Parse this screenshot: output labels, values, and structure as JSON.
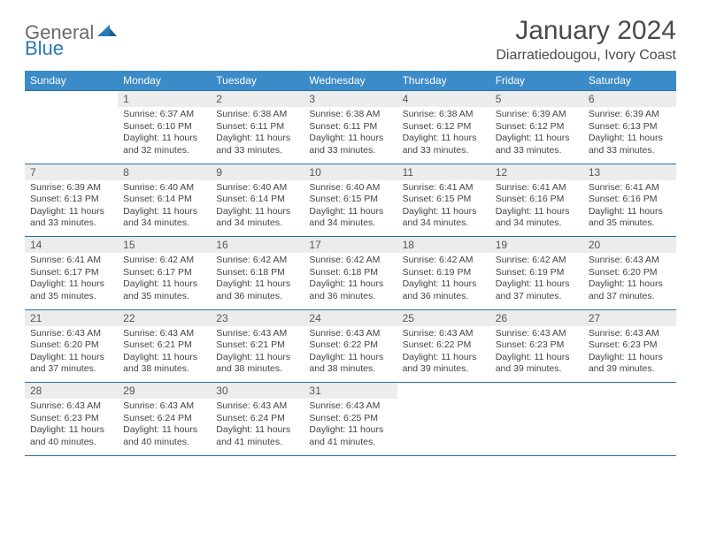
{
  "logo": {
    "text1": "General",
    "text2": "Blue"
  },
  "title": "January 2024",
  "location": "Diarratiedougou, Ivory Coast",
  "colors": {
    "header_bg": "#3b8bc8",
    "header_text": "#ffffff",
    "daynum_bg": "#ececec",
    "border": "#2a6fa3",
    "logo_gray": "#6b6b6b",
    "logo_blue": "#2a7ab8",
    "text": "#444444"
  },
  "weekdays": [
    "Sunday",
    "Monday",
    "Tuesday",
    "Wednesday",
    "Thursday",
    "Friday",
    "Saturday"
  ],
  "weeks": [
    {
      "nums": [
        "",
        "1",
        "2",
        "3",
        "4",
        "5",
        "6"
      ],
      "cells": [
        {
          "empty": true
        },
        {
          "sunrise": "6:37 AM",
          "sunset": "6:10 PM",
          "daylight": "11 hours and 32 minutes."
        },
        {
          "sunrise": "6:38 AM",
          "sunset": "6:11 PM",
          "daylight": "11 hours and 33 minutes."
        },
        {
          "sunrise": "6:38 AM",
          "sunset": "6:11 PM",
          "daylight": "11 hours and 33 minutes."
        },
        {
          "sunrise": "6:38 AM",
          "sunset": "6:12 PM",
          "daylight": "11 hours and 33 minutes."
        },
        {
          "sunrise": "6:39 AM",
          "sunset": "6:12 PM",
          "daylight": "11 hours and 33 minutes."
        },
        {
          "sunrise": "6:39 AM",
          "sunset": "6:13 PM",
          "daylight": "11 hours and 33 minutes."
        }
      ]
    },
    {
      "nums": [
        "7",
        "8",
        "9",
        "10",
        "11",
        "12",
        "13"
      ],
      "cells": [
        {
          "sunrise": "6:39 AM",
          "sunset": "6:13 PM",
          "daylight": "11 hours and 33 minutes."
        },
        {
          "sunrise": "6:40 AM",
          "sunset": "6:14 PM",
          "daylight": "11 hours and 34 minutes."
        },
        {
          "sunrise": "6:40 AM",
          "sunset": "6:14 PM",
          "daylight": "11 hours and 34 minutes."
        },
        {
          "sunrise": "6:40 AM",
          "sunset": "6:15 PM",
          "daylight": "11 hours and 34 minutes."
        },
        {
          "sunrise": "6:41 AM",
          "sunset": "6:15 PM",
          "daylight": "11 hours and 34 minutes."
        },
        {
          "sunrise": "6:41 AM",
          "sunset": "6:16 PM",
          "daylight": "11 hours and 34 minutes."
        },
        {
          "sunrise": "6:41 AM",
          "sunset": "6:16 PM",
          "daylight": "11 hours and 35 minutes."
        }
      ]
    },
    {
      "nums": [
        "14",
        "15",
        "16",
        "17",
        "18",
        "19",
        "20"
      ],
      "cells": [
        {
          "sunrise": "6:41 AM",
          "sunset": "6:17 PM",
          "daylight": "11 hours and 35 minutes."
        },
        {
          "sunrise": "6:42 AM",
          "sunset": "6:17 PM",
          "daylight": "11 hours and 35 minutes."
        },
        {
          "sunrise": "6:42 AM",
          "sunset": "6:18 PM",
          "daylight": "11 hours and 36 minutes."
        },
        {
          "sunrise": "6:42 AM",
          "sunset": "6:18 PM",
          "daylight": "11 hours and 36 minutes."
        },
        {
          "sunrise": "6:42 AM",
          "sunset": "6:19 PM",
          "daylight": "11 hours and 36 minutes."
        },
        {
          "sunrise": "6:42 AM",
          "sunset": "6:19 PM",
          "daylight": "11 hours and 37 minutes."
        },
        {
          "sunrise": "6:43 AM",
          "sunset": "6:20 PM",
          "daylight": "11 hours and 37 minutes."
        }
      ]
    },
    {
      "nums": [
        "21",
        "22",
        "23",
        "24",
        "25",
        "26",
        "27"
      ],
      "cells": [
        {
          "sunrise": "6:43 AM",
          "sunset": "6:20 PM",
          "daylight": "11 hours and 37 minutes."
        },
        {
          "sunrise": "6:43 AM",
          "sunset": "6:21 PM",
          "daylight": "11 hours and 38 minutes."
        },
        {
          "sunrise": "6:43 AM",
          "sunset": "6:21 PM",
          "daylight": "11 hours and 38 minutes."
        },
        {
          "sunrise": "6:43 AM",
          "sunset": "6:22 PM",
          "daylight": "11 hours and 38 minutes."
        },
        {
          "sunrise": "6:43 AM",
          "sunset": "6:22 PM",
          "daylight": "11 hours and 39 minutes."
        },
        {
          "sunrise": "6:43 AM",
          "sunset": "6:23 PM",
          "daylight": "11 hours and 39 minutes."
        },
        {
          "sunrise": "6:43 AM",
          "sunset": "6:23 PM",
          "daylight": "11 hours and 39 minutes."
        }
      ]
    },
    {
      "nums": [
        "28",
        "29",
        "30",
        "31",
        "",
        "",
        ""
      ],
      "cells": [
        {
          "sunrise": "6:43 AM",
          "sunset": "6:23 PM",
          "daylight": "11 hours and 40 minutes."
        },
        {
          "sunrise": "6:43 AM",
          "sunset": "6:24 PM",
          "daylight": "11 hours and 40 minutes."
        },
        {
          "sunrise": "6:43 AM",
          "sunset": "6:24 PM",
          "daylight": "11 hours and 41 minutes."
        },
        {
          "sunrise": "6:43 AM",
          "sunset": "6:25 PM",
          "daylight": "11 hours and 41 minutes."
        },
        {
          "empty": true
        },
        {
          "empty": true
        },
        {
          "empty": true
        }
      ]
    }
  ],
  "labels": {
    "sunrise": "Sunrise: ",
    "sunset": "Sunset: ",
    "daylight": "Daylight: "
  }
}
